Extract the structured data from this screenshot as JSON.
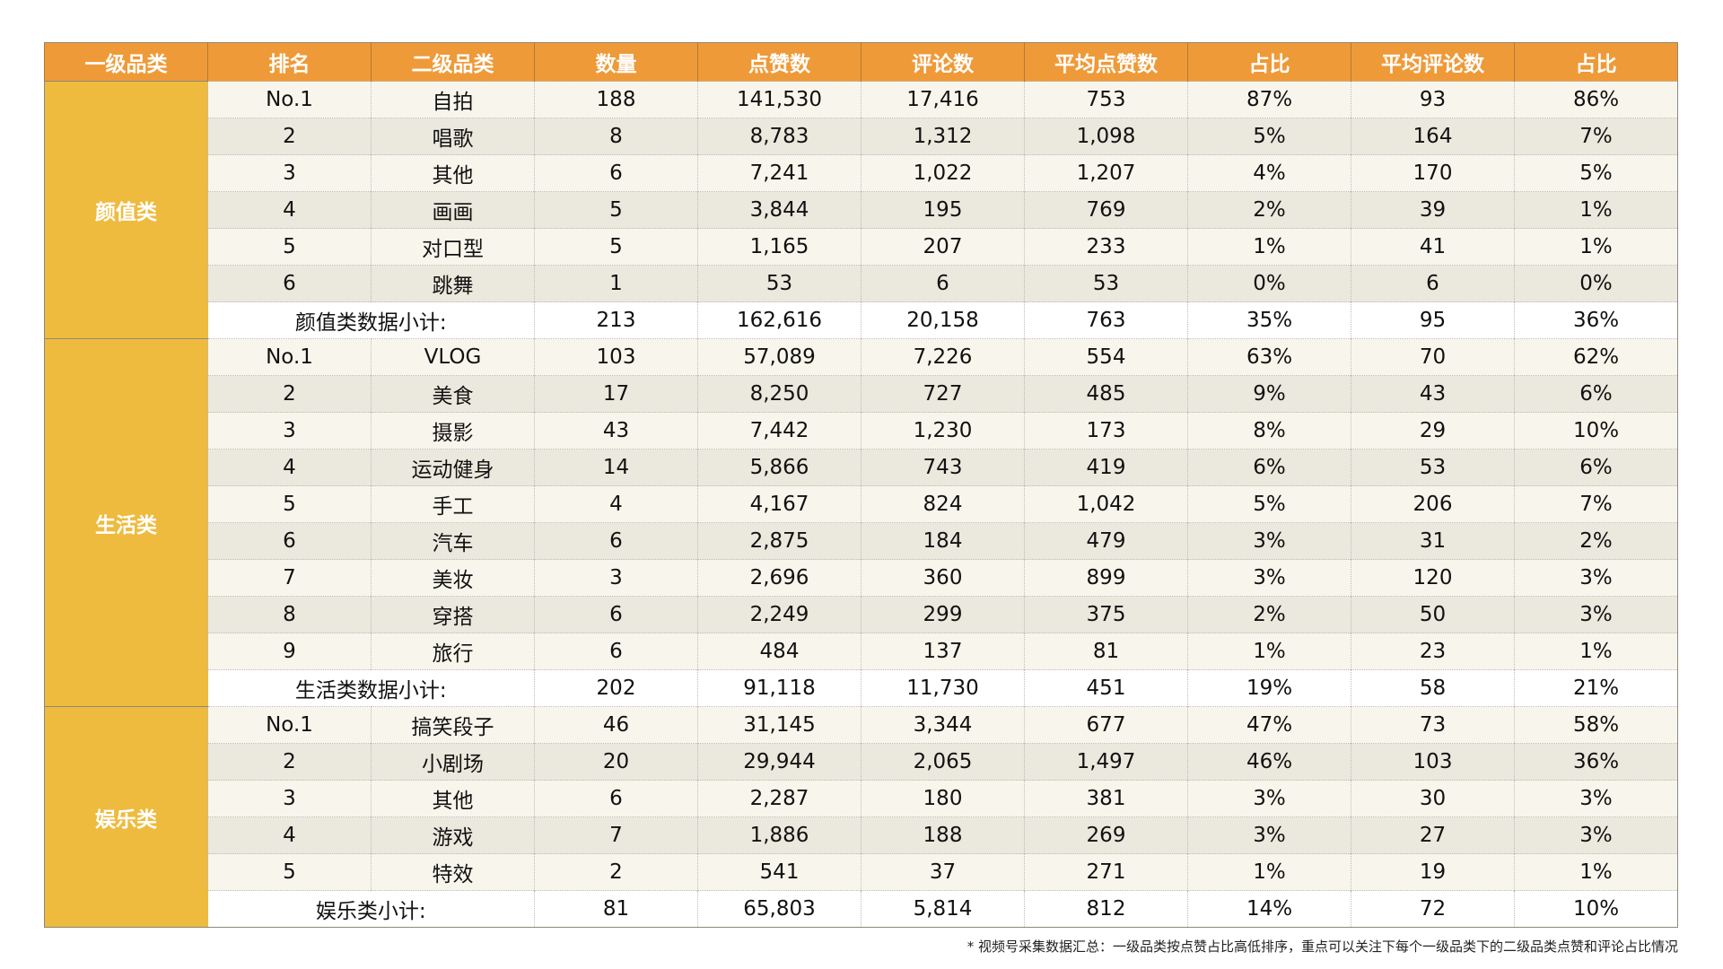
{
  "colors": {
    "header": "#ef9a38",
    "category": "#eebb3f",
    "highlight": "#e8412c"
  },
  "headers": [
    "一级品类",
    "排名",
    "二级品类",
    "数量",
    "点赞数",
    "评论数",
    "平均点赞数",
    "占比",
    "平均评论数",
    "占比"
  ],
  "groups": [
    {
      "category": "颜值类",
      "rows": [
        [
          "No.1",
          "自拍",
          "188",
          "141,530",
          "17,416",
          "753",
          "87%",
          "93",
          "86%"
        ],
        [
          "2",
          "唱歌",
          "8",
          "8,783",
          "1,312",
          "1,098",
          "5%",
          "164",
          "7%"
        ],
        [
          "3",
          "其他",
          "6",
          "7,241",
          "1,022",
          "1,207",
          "4%",
          "170",
          "5%"
        ],
        [
          "4",
          "画画",
          "5",
          "3,844",
          "195",
          "769",
          "2%",
          "39",
          "1%"
        ],
        [
          "5",
          "对口型",
          "5",
          "1,165",
          "207",
          "233",
          "1%",
          "41",
          "1%"
        ],
        [
          "6",
          "跳舞",
          "1",
          "53",
          "6",
          "53",
          "0%",
          "6",
          "0%"
        ]
      ],
      "subtotal": [
        "颜值类数据小计:",
        "213",
        "162,616",
        "20,158",
        "763",
        "35%",
        "95",
        "36%"
      ]
    },
    {
      "category": "生活类",
      "rows": [
        [
          "No.1",
          "VLOG",
          "103",
          "57,089",
          "7,226",
          "554",
          "63%",
          "70",
          "62%"
        ],
        [
          "2",
          "美食",
          "17",
          "8,250",
          "727",
          "485",
          "9%",
          "43",
          "6%"
        ],
        [
          "3",
          "摄影",
          "43",
          "7,442",
          "1,230",
          "173",
          "8%",
          "29",
          "10%"
        ],
        [
          "4",
          "运动健身",
          "14",
          "5,866",
          "743",
          "419",
          "6%",
          "53",
          "6%"
        ],
        [
          "5",
          "手工",
          "4",
          "4,167",
          "824",
          "1,042",
          "5%",
          "206",
          "7%"
        ],
        [
          "6",
          "汽车",
          "6",
          "2,875",
          "184",
          "479",
          "3%",
          "31",
          "2%"
        ],
        [
          "7",
          "美妆",
          "3",
          "2,696",
          "360",
          "899",
          "3%",
          "120",
          "3%"
        ],
        [
          "8",
          "穿搭",
          "6",
          "2,249",
          "299",
          "375",
          "2%",
          "50",
          "3%"
        ],
        [
          "9",
          "旅行",
          "6",
          "484",
          "137",
          "81",
          "1%",
          "23",
          "1%"
        ]
      ],
      "subtotal": [
        "生活类数据小计:",
        "202",
        "91,118",
        "11,730",
        "451",
        "19%",
        "58",
        "21%"
      ]
    },
    {
      "category": "娱乐类",
      "rows": [
        [
          "No.1",
          "搞笑段子",
          "46",
          "31,145",
          "3,344",
          "677",
          "47%",
          "73",
          "58%"
        ],
        [
          "2",
          "小剧场",
          "20",
          "29,944",
          "2,065",
          "1,497",
          "46%",
          "103",
          "36%"
        ],
        [
          "3",
          "其他",
          "6",
          "2,287",
          "180",
          "381",
          "3%",
          "30",
          "3%"
        ],
        [
          "4",
          "游戏",
          "7",
          "1,886",
          "188",
          "269",
          "3%",
          "27",
          "3%"
        ],
        [
          "5",
          "特效",
          "2",
          "541",
          "37",
          "271",
          "1%",
          "19",
          "1%"
        ]
      ],
      "subtotal": [
        "娱乐类小计:",
        "81",
        "65,803",
        "5,814",
        "812",
        "14%",
        "72",
        "10%"
      ]
    }
  ],
  "footnote": "* 视频号采集数据汇总：一级品类按点赞占比高低排序，重点可以关注下每个一级品类下的二级品类点赞和评论占比情况"
}
